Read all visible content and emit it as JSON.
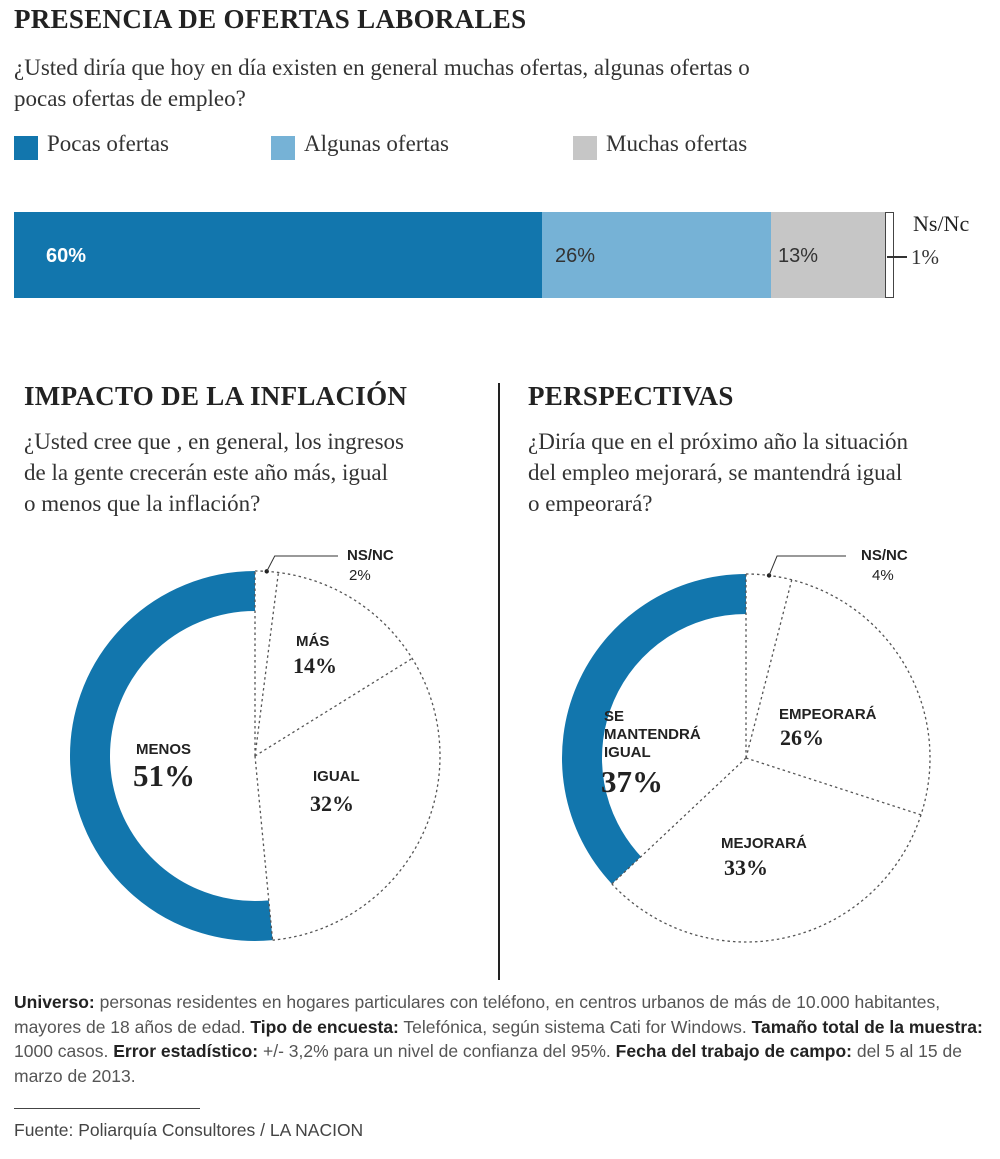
{
  "section1": {
    "title": "PRESENCIA DE OFERTAS LABORALES",
    "question_line1": "¿Usted diría que hoy en día existen en general muchas ofertas, algunas ofertas o",
    "question_line2": "pocas ofertas de empleo?"
  },
  "section2": {
    "title": "IMPACTO DE LA INFLACIÓN",
    "question_line1": "¿Usted cree que , en general, los ingresos",
    "question_line2": "de la gente crecerán este año más, igual",
    "question_line3": "o menos que la inflación?"
  },
  "section3": {
    "title": "PERSPECTIVAS",
    "question_line1": "¿Diría que en el próximo año la situación",
    "question_line2": "del empleo mejorará, se mantendrá igual",
    "question_line3": "o empeorará?"
  },
  "colors": {
    "dark_blue": "#1276ad",
    "light_blue": "#76b2d6",
    "gray": "#c6c6c6",
    "divider": "#222222"
  },
  "chart_data": [
    {
      "type": "bar",
      "orientation": "horizontal-stacked",
      "series": [
        {
          "name": "Pocas ofertas",
          "value": 60,
          "label": "60%"
        },
        {
          "name": "Algunas ofertas",
          "value": 26,
          "label": "26%"
        },
        {
          "name": "Muchas ofertas",
          "value": 13,
          "label": "13%"
        },
        {
          "name": "Ns/Nc",
          "value": 1,
          "label": "1%"
        }
      ],
      "legend": [
        "Pocas ofertas",
        "Algunas ofertas",
        "Muchas ofertas"
      ],
      "legend_position": "top"
    },
    {
      "type": "pie",
      "slices": [
        {
          "name": "MENOS",
          "value": 51,
          "label": "51%"
        },
        {
          "name": "NS/NC",
          "value": 2,
          "label": "2%"
        },
        {
          "name": "MÁS",
          "value": 14,
          "label": "14%"
        },
        {
          "name": "IGUAL",
          "value": 32,
          "label": "32%"
        }
      ]
    },
    {
      "type": "pie",
      "slices": [
        {
          "name": "SE MANTENDRÁ IGUAL",
          "value": 37,
          "label": "37%"
        },
        {
          "name": "NS/NC",
          "value": 4,
          "label": "4%"
        },
        {
          "name": "EMPEORARÁ",
          "value": 26,
          "label": "26%"
        },
        {
          "name": "MEJORARÁ",
          "value": 33,
          "label": "33%"
        }
      ]
    }
  ],
  "pie1_labels": {
    "menos": "MENOS",
    "menos_val": "51%",
    "nsnc": "NS/NC",
    "nsnc_val": "2%",
    "mas": "MÁS",
    "mas_val": "14%",
    "igual": "IGUAL",
    "igual_val": "32%"
  },
  "pie2_labels": {
    "mant_l1": "SE",
    "mant_l2": "MANTENDRÁ",
    "mant_l3": "IGUAL",
    "mant_val": "37%",
    "nsnc": "NS/NC",
    "nsnc_val": "4%",
    "emp": "EMPEORARÁ",
    "emp_val": "26%",
    "mej": "MEJORARÁ",
    "mej_val": "33%"
  },
  "footer": {
    "universo_label": "Universo:",
    "universo_text": " personas residentes en hogares particulares con teléfono, en centros urbanos de más de 10.000 habitantes, mayores de 18 años de edad. ",
    "tipo_label": "Tipo de encuesta:",
    "tipo_text": " Telefónica, según sistema Cati for Windows. ",
    "tamano_label": "Tamaño total de la muestra:",
    "tamano_text": " 1000 casos. ",
    "error_label": "Error estadístico:",
    "error_text": " +/- 3,2% para un nivel de confianza del 95%. ",
    "fecha_label": "Fecha del trabajo de campo:",
    "fecha_text": " del 5 al 15 de marzo de 2013.",
    "source": "Fuente: Poliarquía Consultores / LA NACION"
  }
}
